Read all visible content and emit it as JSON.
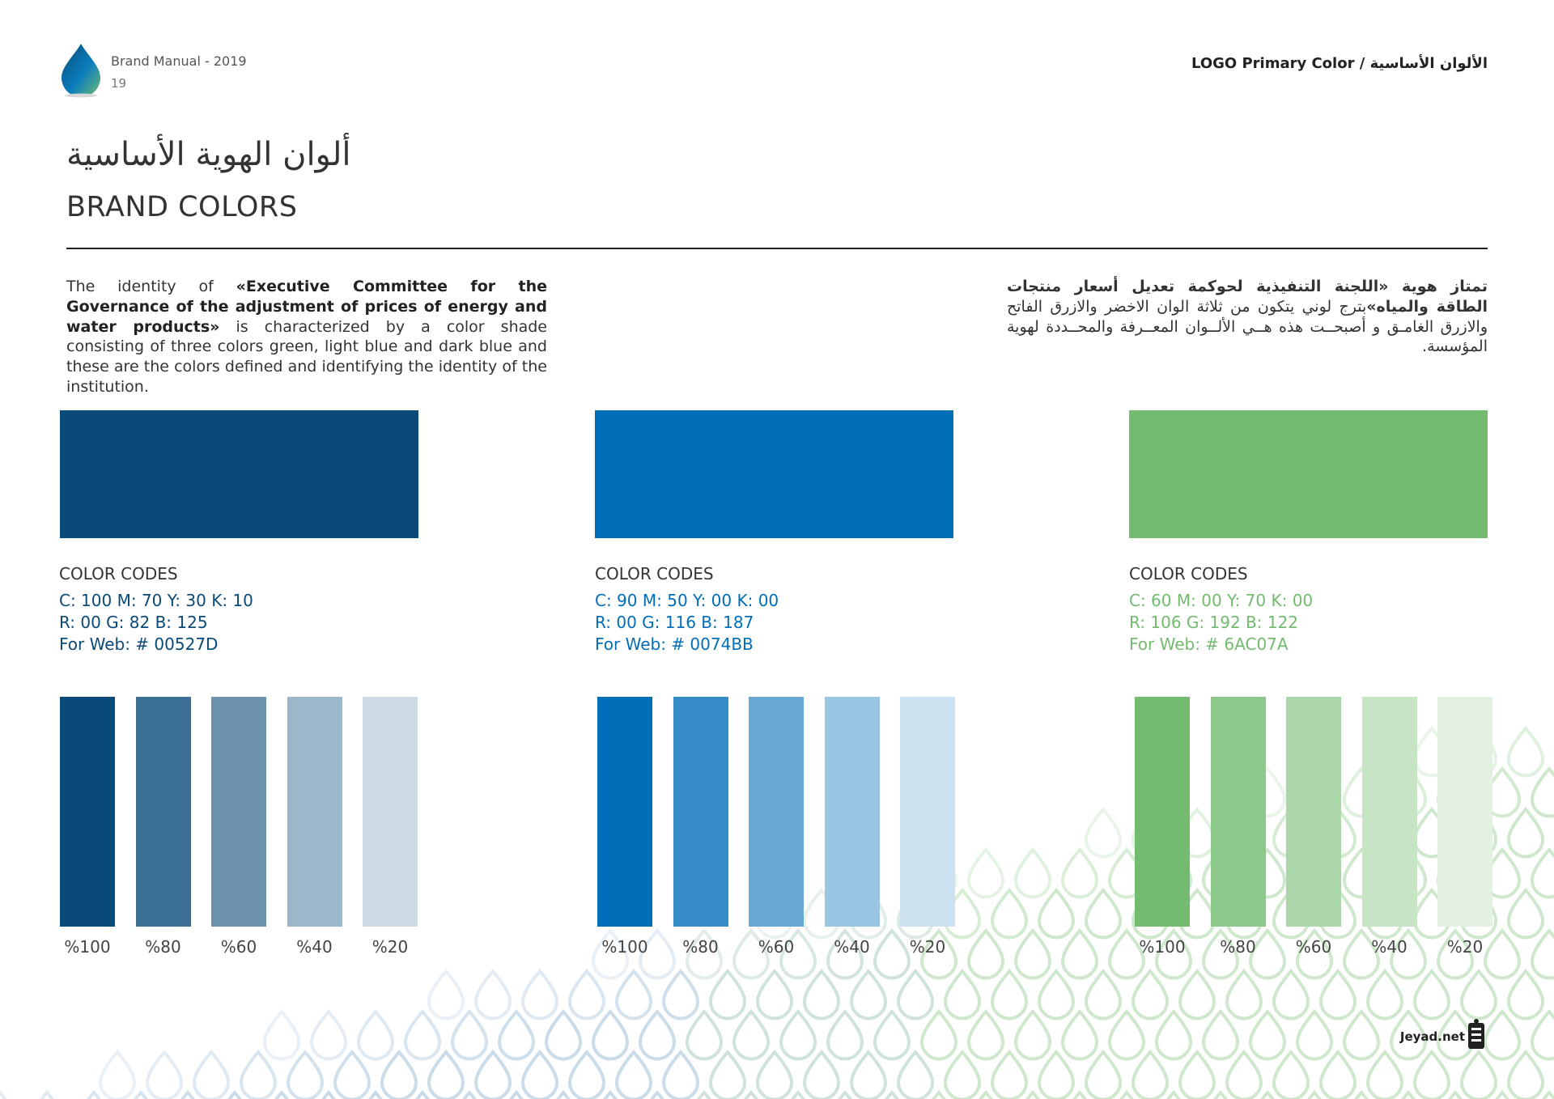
{
  "header": {
    "brand_label": "Brand Manual - 2019",
    "page_number": "19",
    "section_title": "LOGO Primary Color / الألوان الأساسية"
  },
  "title": {
    "arabic": "ألوان الهوية الأساسية",
    "english": "BRAND COLORS"
  },
  "description": {
    "en_part1": "The identity of ",
    "en_bold": "«Executive Committee for the Governance of the adjustment of prices of energy and water products»",
    "en_part2": " is characterized by a color shade consisting of three colors green, light blue and dark blue and these are the colors defined and identifying the identity of the institution.",
    "ar_part1": "تمتاز هوية «اللجنة التنفيذية لحوكمة تعديل أسعار منتجات الطاقة والمياه»",
    "ar_part2": "بترج لوني يتكون من ثلاثة الوان الاخضر والازرق الفاتح والازرق الغامـق و أصبحــت هذه هــي الألــوان المعــرفة والمحــددة لهوية المؤسسة."
  },
  "colors": [
    {
      "hex": "#0A4A78",
      "text_color": "#0A4A78",
      "codes_title": "COLOR CODES",
      "cmyk": "C: 100 M: 70  Y: 30 K: 10",
      "rgb": "R: 00 G: 82  B: 125",
      "web": "For Web: # 00527D",
      "tints": [
        {
          "label": "%100",
          "color": "#0A4A78"
        },
        {
          "label": "%80",
          "color": "#3B6F93"
        },
        {
          "label": "%60",
          "color": "#6C92AE"
        },
        {
          "label": "%40",
          "color": "#9DB7CA"
        },
        {
          "label": "%20",
          "color": "#CEDBE4"
        }
      ]
    },
    {
      "hex": "#006EB8",
      "text_color": "#006EB8",
      "codes_title": "COLOR CODES",
      "cmyk": "C: 90 M: 50  Y: 00 K: 00",
      "rgb": "R: 00 G: 116  B: 187",
      "web": "For Web: # 0074BB",
      "tints": [
        {
          "label": "%100",
          "color": "#006EB8"
        },
        {
          "label": "%80",
          "color": "#348BC6"
        },
        {
          "label": "%60",
          "color": "#67A8D4"
        },
        {
          "label": "%40",
          "color": "#9AC5E3"
        },
        {
          "label": "%20",
          "color": "#CCE2F1"
        }
      ]
    },
    {
      "hex": "#72BB6F",
      "text_color": "#72BB6F",
      "codes_title": "COLOR CODES",
      "cmyk": "C: 60 M: 00  Y: 70 K: 00",
      "rgb": "R: 106 G: 192  B: 122",
      "web": "For Web: # 6AC07A",
      "tints": [
        {
          "label": "%100",
          "color": "#72BB6F"
        },
        {
          "label": "%80",
          "color": "#8EC98C"
        },
        {
          "label": "%60",
          "color": "#AAD6A9"
        },
        {
          "label": "%40",
          "color": "#C7E4C5"
        },
        {
          "label": "%20",
          "color": "#E3F1E2"
        }
      ]
    }
  ],
  "footer": {
    "site": "Jeyad.net"
  }
}
